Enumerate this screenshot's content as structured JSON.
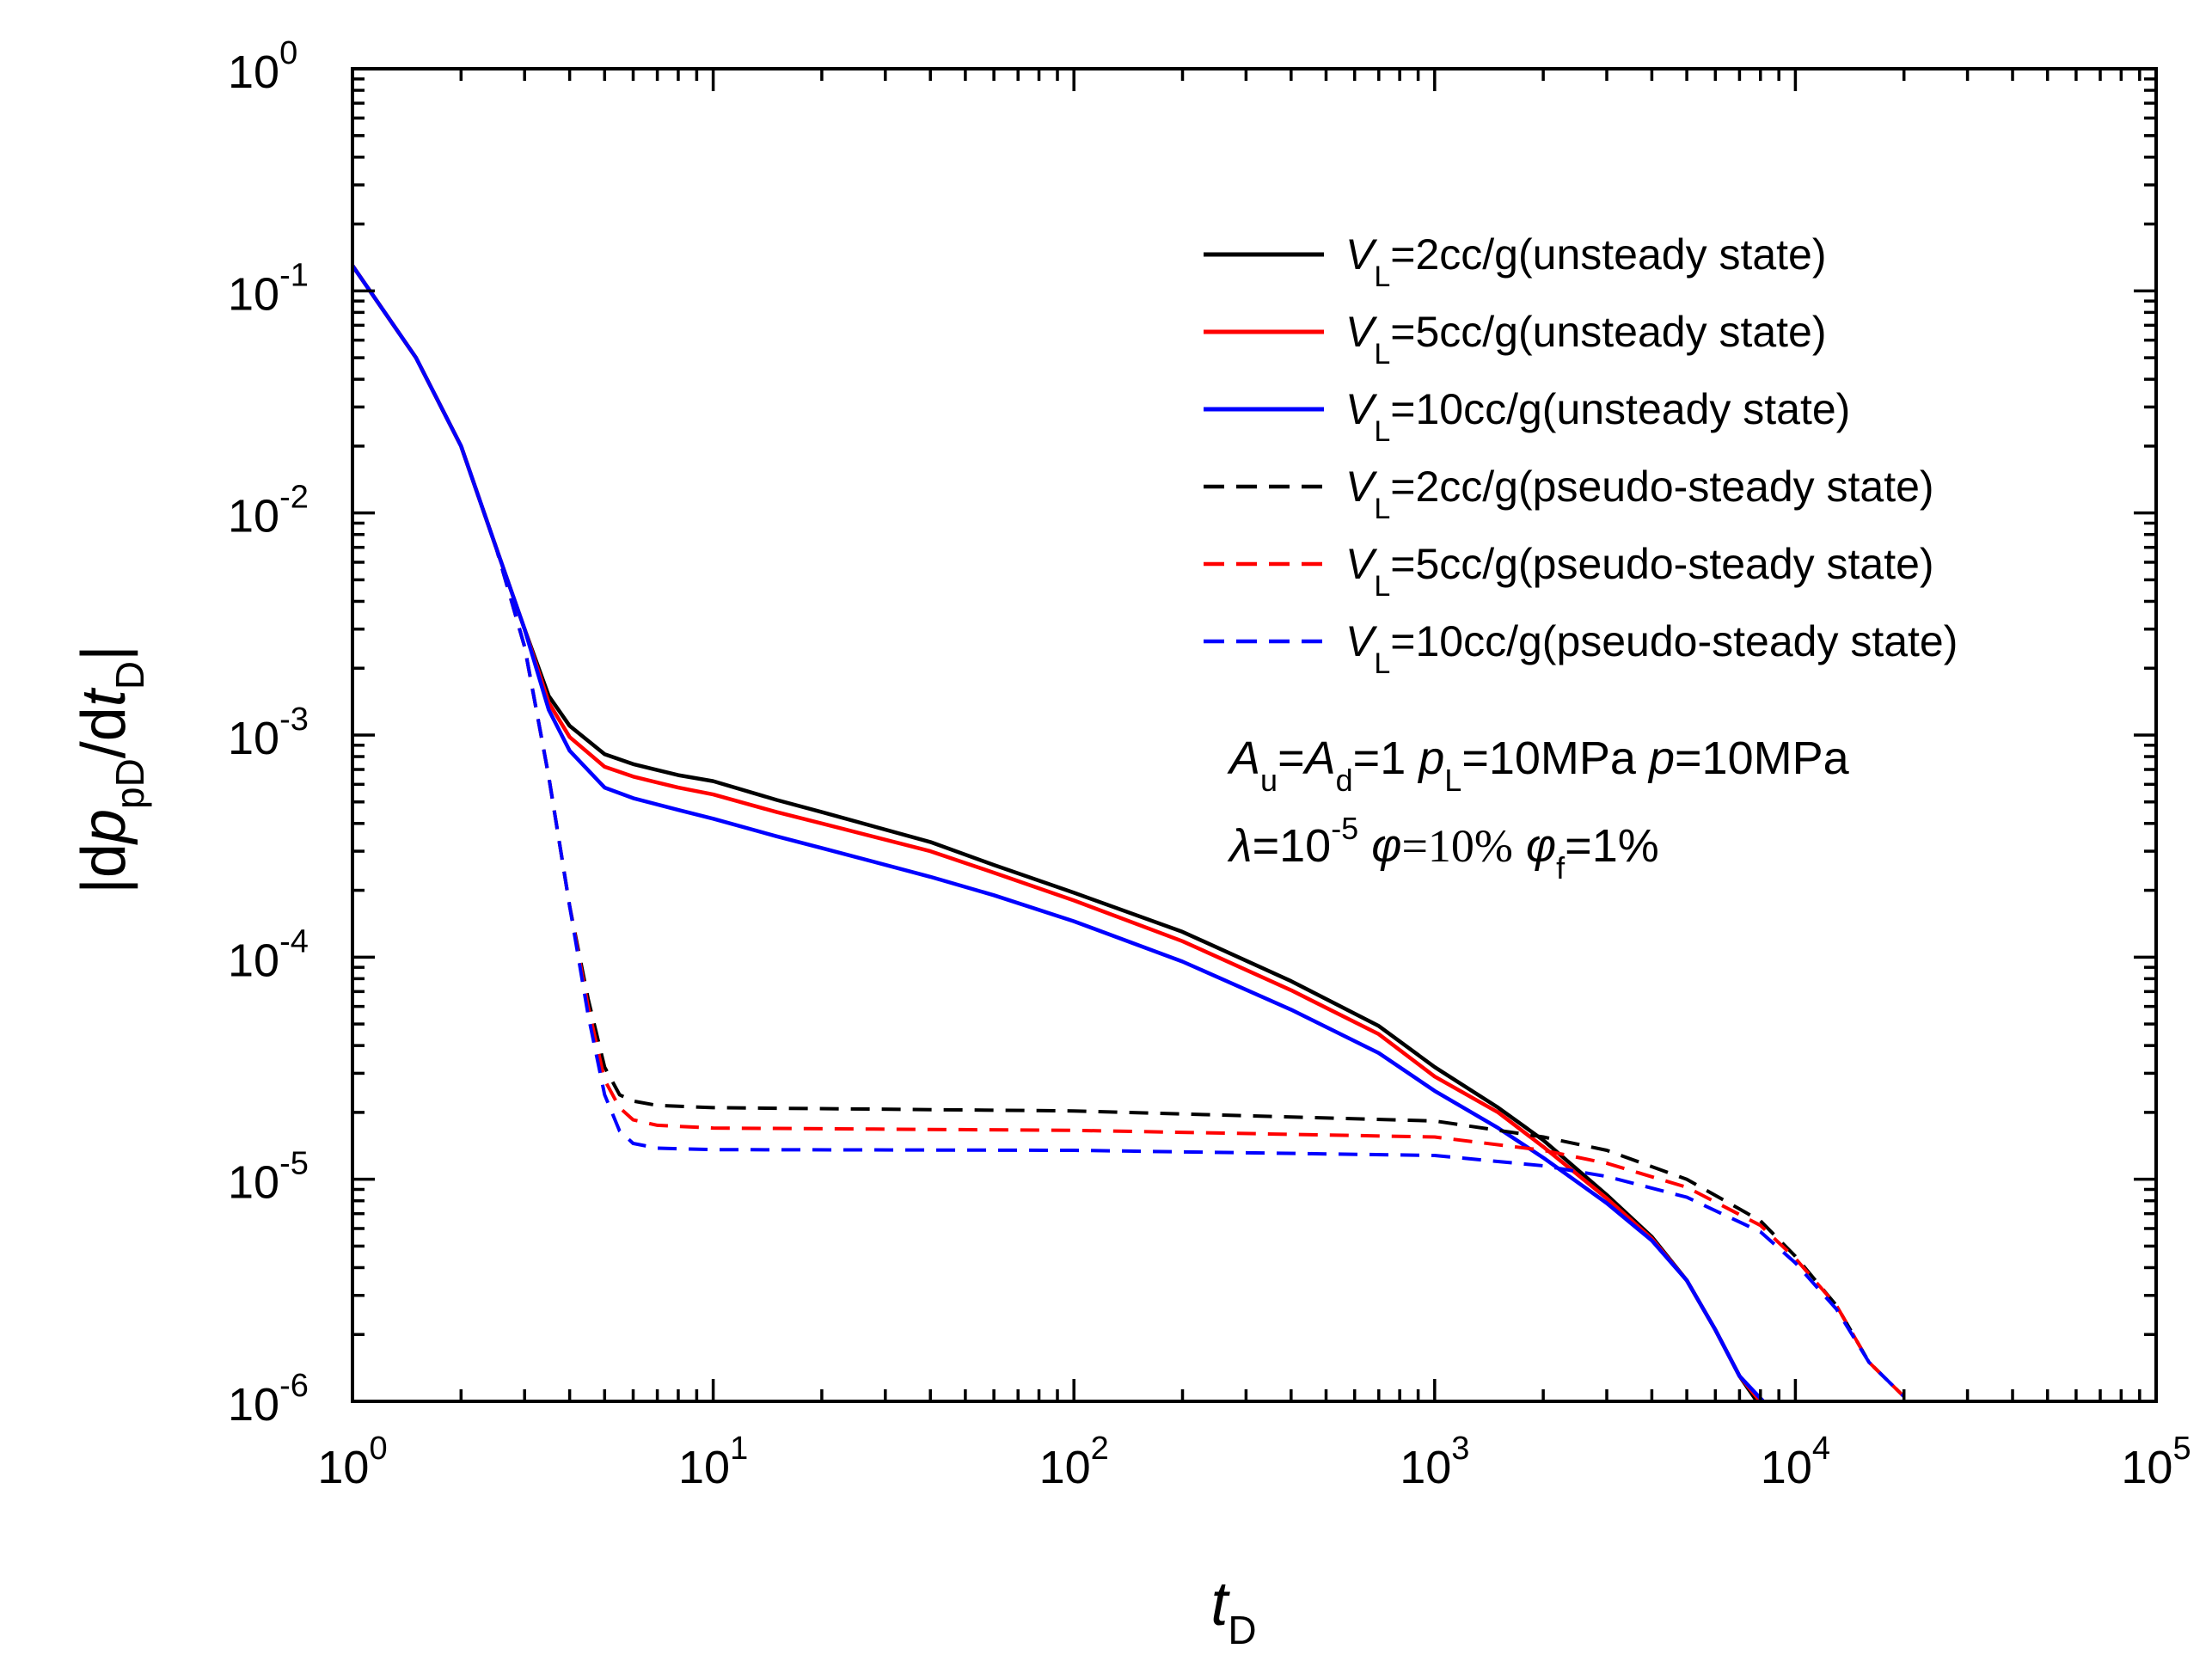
{
  "chart_data": {
    "type": "line",
    "xscale": "log",
    "yscale": "log",
    "xlim": [
      1,
      100000
    ],
    "ylim": [
      1e-06,
      1
    ],
    "xlabel": {
      "main": "t",
      "sub": "D"
    },
    "ylabel": {
      "pre": "|d",
      "p": "p",
      "psub": "pD",
      "mid": "/d",
      "t": "t",
      "tsub": "D",
      "post": "|"
    },
    "x_ticks": [
      {
        "base": "10",
        "exp": "0"
      },
      {
        "base": "10",
        "exp": "1"
      },
      {
        "base": "10",
        "exp": "2"
      },
      {
        "base": "10",
        "exp": "3"
      },
      {
        "base": "10",
        "exp": "4"
      },
      {
        "base": "10",
        "exp": "5"
      }
    ],
    "y_ticks": [
      {
        "base": "10",
        "exp": "0"
      },
      {
        "base": "10",
        "exp": "-1"
      },
      {
        "base": "10",
        "exp": "-2"
      },
      {
        "base": "10",
        "exp": "-3"
      },
      {
        "base": "10",
        "exp": "-4"
      },
      {
        "base": "10",
        "exp": "-5"
      },
      {
        "base": "10",
        "exp": "-6"
      }
    ],
    "series": [
      {
        "name": "V_L=2cc/g(unsteady state)",
        "color": "#000000",
        "dash": "solid",
        "label": {
          "v": "V",
          "sub": "L",
          "text": "=2cc/g(unsteady state)"
        },
        "x": [
          1,
          1.5,
          2,
          2.5,
          3,
          3.5,
          4,
          5,
          6,
          8,
          10,
          15,
          20,
          40,
          60,
          100,
          200,
          400,
          700,
          1000,
          1500,
          2000,
          3000,
          4000,
          5000,
          6000,
          7000,
          8000
        ],
        "y": [
          0.13,
          0.05,
          0.02,
          0.007,
          0.003,
          0.0015,
          0.0011,
          0.00082,
          0.00074,
          0.00066,
          0.00062,
          0.00051,
          0.00045,
          0.00033,
          0.00026,
          0.000195,
          0.00013,
          7.8e-05,
          4.9e-05,
          3.2e-05,
          2.1e-05,
          1.5e-05,
          8.5e-06,
          5.5e-06,
          3.5e-06,
          2.1e-06,
          1.3e-06,
          9.5e-07
        ]
      },
      {
        "name": "V_L=5cc/g(unsteady state)",
        "color": "#ff0000",
        "dash": "solid",
        "label": {
          "v": "V",
          "sub": "L",
          "text": "=5cc/g(unsteady state)"
        },
        "x": [
          1,
          1.5,
          2,
          2.5,
          3,
          3.5,
          4,
          5,
          6,
          8,
          10,
          15,
          20,
          40,
          60,
          100,
          200,
          400,
          700,
          1000,
          1500,
          2000,
          3000,
          4000,
          5000,
          6000,
          7000,
          8200
        ],
        "y": [
          0.13,
          0.05,
          0.02,
          0.007,
          0.003,
          0.0014,
          0.00098,
          0.00072,
          0.00065,
          0.00058,
          0.00054,
          0.00045,
          0.0004,
          0.0003,
          0.00024,
          0.00018,
          0.000118,
          7.1e-05,
          4.5e-05,
          2.9e-05,
          2e-05,
          1.4e-05,
          8.2e-06,
          5.4e-06,
          3.5e-06,
          2.1e-06,
          1.3e-06,
          9.5e-07
        ]
      },
      {
        "name": "V_L=10cc/g(unsteady state)",
        "color": "#0000ff",
        "dash": "solid",
        "label": {
          "v": "V",
          "sub": "L",
          "text": "=10cc/g(unsteady state)"
        },
        "x": [
          1,
          1.5,
          2,
          2.5,
          3,
          3.5,
          4,
          5,
          6,
          8,
          10,
          15,
          20,
          40,
          60,
          100,
          200,
          400,
          700,
          1000,
          1500,
          2000,
          3000,
          4000,
          5000,
          6000,
          7000,
          8400
        ],
        "y": [
          0.13,
          0.05,
          0.02,
          0.007,
          0.003,
          0.0013,
          0.00085,
          0.00058,
          0.00052,
          0.00046,
          0.00042,
          0.00035,
          0.00031,
          0.00023,
          0.00019,
          0.000145,
          9.55e-05,
          5.8e-05,
          3.7e-05,
          2.5e-05,
          1.7e-05,
          1.25e-05,
          7.8e-06,
          5.3e-06,
          3.5e-06,
          2.1e-06,
          1.3e-06,
          9.5e-07
        ]
      },
      {
        "name": "V_L=2cc/g(pseudo-steady state)",
        "color": "#000000",
        "dash": "dashed",
        "label": {
          "v": "V",
          "sub": "L",
          "text": "=2cc/g(pseudo-steady state)"
        },
        "x": [
          1,
          1.5,
          2,
          2.5,
          3,
          3.5,
          4,
          4.5,
          5,
          5.5,
          6,
          7,
          10,
          100,
          1000,
          2000,
          3000,
          5000,
          8000,
          10000,
          13000,
          16000,
          20000
        ],
        "y": [
          0.13,
          0.05,
          0.02,
          0.007,
          0.0025,
          0.00065,
          0.00017,
          6.5e-05,
          3.2e-05,
          2.4e-05,
          2.25e-05,
          2.15e-05,
          2.1e-05,
          2.03e-05,
          1.83e-05,
          1.55e-05,
          1.35e-05,
          1e-05,
          6.5e-06,
          4.5e-06,
          2.7e-06,
          1.5e-06,
          1.05e-06
        ]
      },
      {
        "name": "V_L=5cc/g(pseudo-steady state)",
        "color": "#ff0000",
        "dash": "dashed",
        "label": {
          "v": "V",
          "sub": "L",
          "text": "=5cc/g(pseudo-steady state)"
        },
        "x": [
          1,
          1.5,
          2,
          2.5,
          3,
          3.5,
          4,
          4.5,
          5,
          5.5,
          6,
          7,
          10,
          100,
          1000,
          2000,
          3000,
          5000,
          8000,
          10000,
          13000,
          16000,
          20000
        ],
        "y": [
          0.13,
          0.05,
          0.02,
          0.007,
          0.0025,
          0.00065,
          0.00017,
          6e-05,
          2.8e-05,
          2.1e-05,
          1.85e-05,
          1.75e-05,
          1.7e-05,
          1.66e-05,
          1.55e-05,
          1.35e-05,
          1.18e-05,
          9.2e-06,
          6.2e-06,
          4.4e-06,
          2.7e-06,
          1.5e-06,
          1.05e-06
        ]
      },
      {
        "name": "V_L=10cc/g(pseudo-steady state)",
        "color": "#0000ff",
        "dash": "dashed",
        "label": {
          "v": "V",
          "sub": "L",
          "text": "=10cc/g(pseudo-steady state)"
        },
        "x": [
          1,
          1.5,
          2,
          2.5,
          3,
          3.5,
          4,
          4.5,
          5,
          5.5,
          6,
          7,
          10,
          100,
          1000,
          2000,
          3000,
          5000,
          8000,
          10000,
          13000,
          16000,
          20000
        ],
        "y": [
          0.13,
          0.05,
          0.02,
          0.007,
          0.0025,
          0.00065,
          0.00017,
          5.5e-05,
          2.4e-05,
          1.65e-05,
          1.45e-05,
          1.38e-05,
          1.36e-05,
          1.35e-05,
          1.28e-05,
          1.15e-05,
          1.03e-05,
          8.3e-06,
          5.8e-06,
          4.2e-06,
          2.6e-06,
          1.5e-06,
          1.05e-06
        ]
      }
    ],
    "legend_position": "top-right",
    "annotations": {
      "line1": [
        {
          "t": "A",
          "i": true
        },
        {
          "t": "u",
          "sub": true
        },
        {
          "t": "="
        },
        {
          "t": "A",
          "i": true
        },
        {
          "t": "d",
          "sub": true
        },
        {
          "t": "=1 "
        },
        {
          "t": "p",
          "i": true
        },
        {
          "t": "L",
          "sub": true
        },
        {
          "t": "=10MPa "
        },
        {
          "t": "p",
          "i": true
        },
        {
          "t": "=10MPa"
        }
      ],
      "line2": [
        {
          "t": "λ",
          "i": true
        },
        {
          "t": "=10"
        },
        {
          "t": "-5",
          "sup": true
        },
        {
          "t": " "
        },
        {
          "t": "φ",
          "i": true
        },
        {
          "t": "=10%",
          "serif": true
        },
        {
          "t": " "
        },
        {
          "t": "φ",
          "i": true
        },
        {
          "t": "f",
          "sub": true
        },
        {
          "t": "=1%"
        }
      ]
    }
  }
}
